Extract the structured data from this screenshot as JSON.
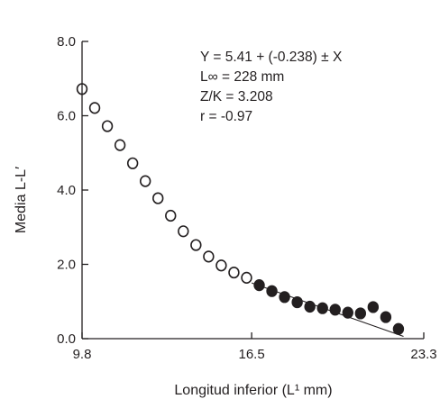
{
  "chart_data": {
    "type": "scatter",
    "title": "",
    "xlabel": "Longitud inferior (L¹ mm)",
    "ylabel": "Media L-L′",
    "xlim": [
      9.8,
      23.3
    ],
    "ylim": [
      0.0,
      8.0
    ],
    "x_ticks": [
      "9.8",
      "16.5",
      "23.3"
    ],
    "y_ticks": [
      "0.0",
      "2.0",
      "4.0",
      "6.0",
      "8.0"
    ],
    "grid": false,
    "annotations": [
      "Y = 5.41 + (-0.238) ± X",
      "L∞ = 228 mm",
      "Z/K = 3.208",
      "r = -0.97"
    ],
    "series": [
      {
        "marker": "open-circle",
        "color": "#231f20",
        "x": [
          9.8,
          10.3,
          10.8,
          11.3,
          11.8,
          12.3,
          12.8,
          13.3,
          13.8,
          14.3,
          14.8,
          15.3,
          15.8,
          16.3
        ],
        "y": [
          6.72,
          6.21,
          5.72,
          5.21,
          4.72,
          4.24,
          3.78,
          3.31,
          2.89,
          2.52,
          2.21,
          1.97,
          1.78,
          1.64
        ]
      },
      {
        "marker": "filled-circle",
        "color": "#231f20",
        "x": [
          16.8,
          17.3,
          17.8,
          18.3,
          18.8,
          19.3,
          19.8,
          20.3,
          20.8,
          21.3,
          21.8,
          22.3
        ],
        "y": [
          1.44,
          1.28,
          1.12,
          0.98,
          0.86,
          0.82,
          0.78,
          0.7,
          0.68,
          0.85,
          0.58,
          0.26
        ]
      }
    ],
    "fit_line": {
      "x": [
        16.5,
        22.5
      ],
      "y": [
        1.5,
        0.06
      ]
    }
  }
}
